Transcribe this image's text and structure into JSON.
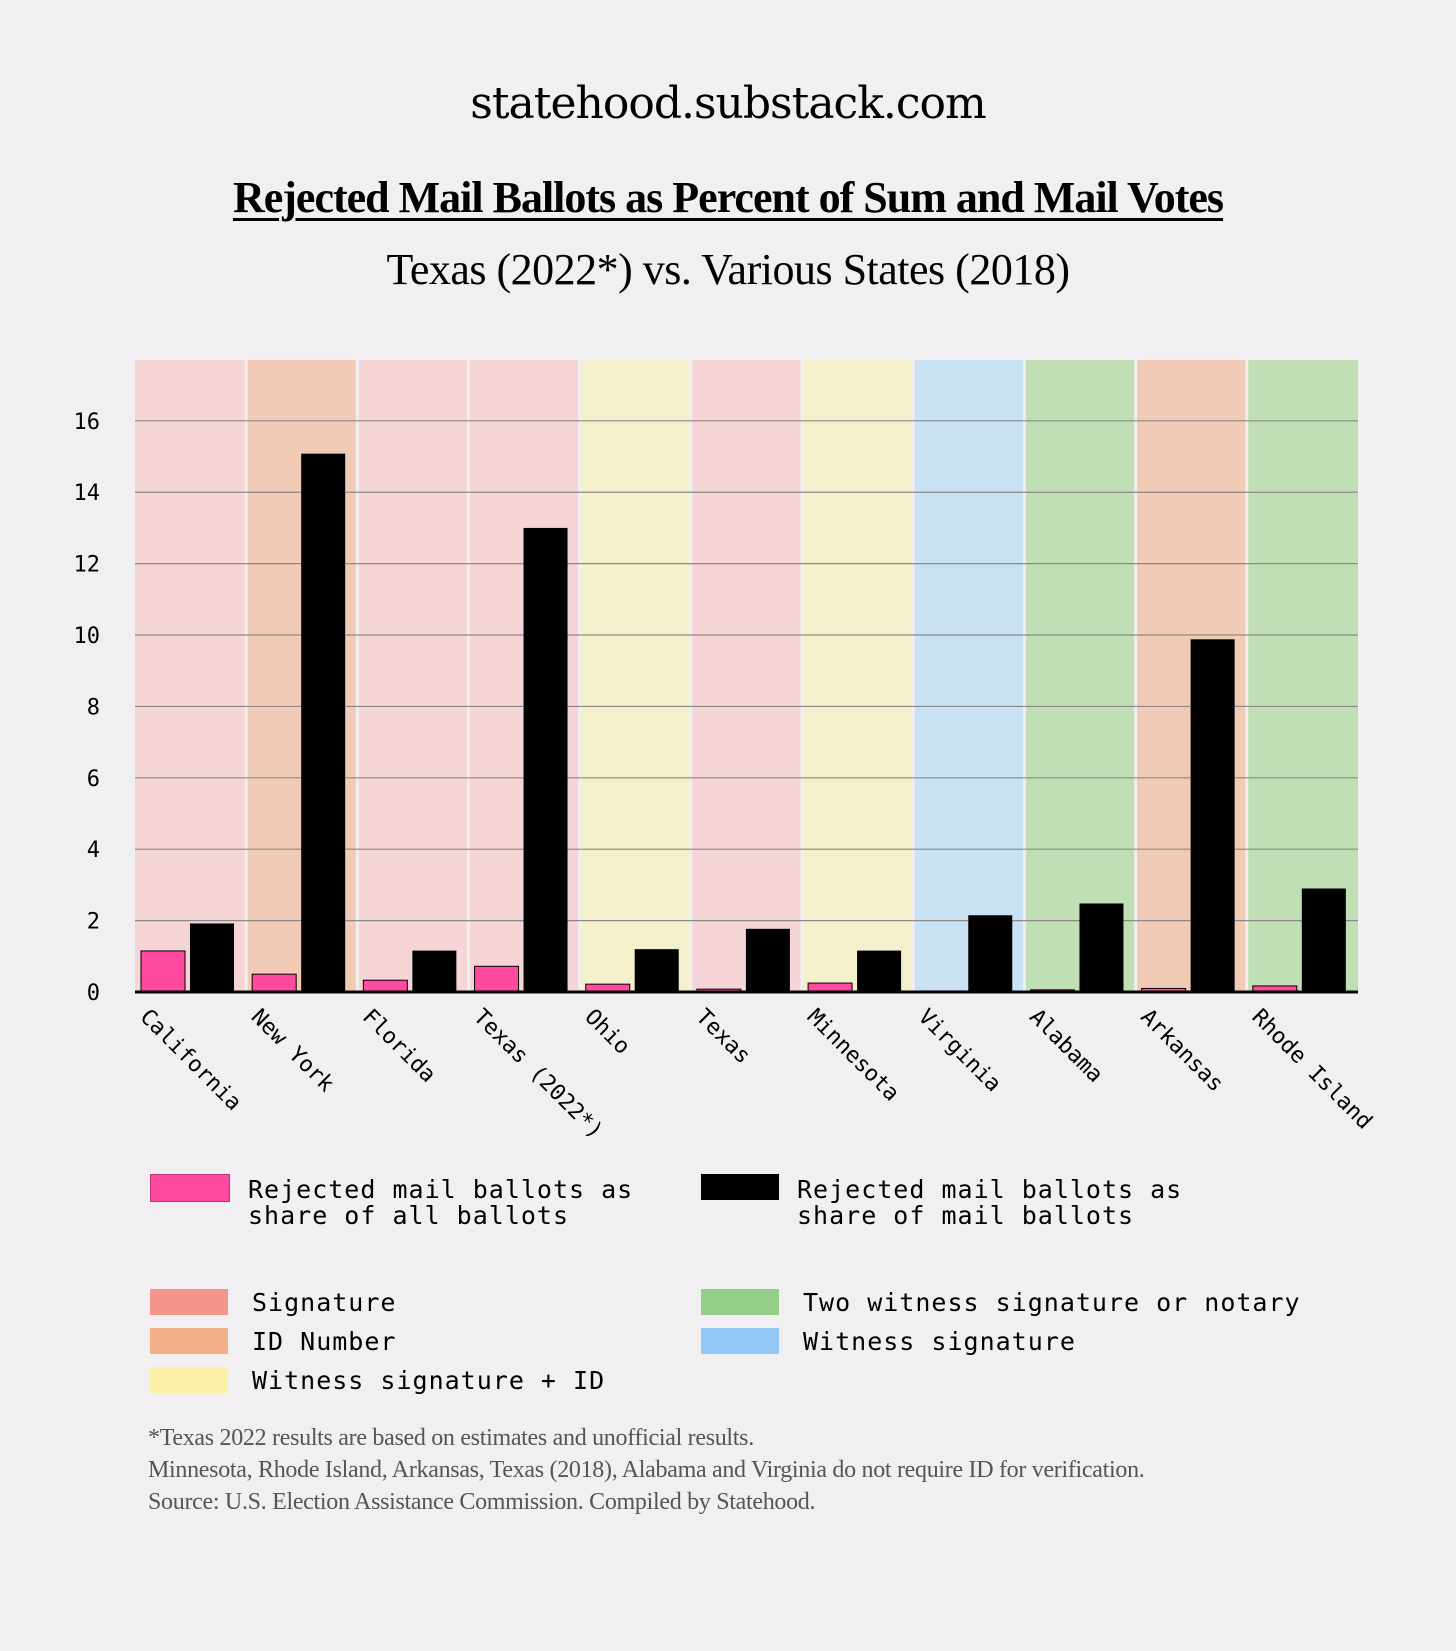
{
  "header": {
    "site": "statehood.substack.com",
    "title": "Rejected Mail Ballots as Percent of Sum and Mail Votes",
    "subtitle": "Texas (2022*)  vs. Various States (2018)"
  },
  "colors": {
    "bar_all": "#ff4aa0",
    "bar_mail": "#000000",
    "bg_signature": "#f5d5d5",
    "bg_id_number": "#f2cbb6",
    "bg_witness_id": "#f5f0cc",
    "bg_two_witness": "#c1dfb5",
    "bg_witness": "#c9e2f3",
    "legend_signature": "#f4958c",
    "legend_id_number": "#f1b088",
    "legend_witness_id": "#faf0a8",
    "legend_two_witness": "#94d08a",
    "legend_witness": "#93c8f6"
  },
  "chart_data": {
    "type": "bar",
    "categories": [
      "California",
      "New York",
      "Florida",
      "Texas (2022*)",
      "Ohio",
      "Texas",
      "Minnesota",
      "Virginia",
      "Alabama",
      "Arkansas",
      "Rhode Island"
    ],
    "series": [
      {
        "name": "Rejected mail ballots as share of all ballots",
        "color_key": "bar_all",
        "values": [
          1.15,
          0.5,
          0.33,
          0.72,
          0.22,
          0.08,
          0.25,
          0.03,
          0.06,
          0.1,
          0.17
        ]
      },
      {
        "name": "Rejected mail ballots as share of mail ballots",
        "color_key": "bar_mail",
        "values": [
          1.92,
          15.08,
          1.16,
          13.0,
          1.2,
          1.77,
          1.16,
          2.15,
          2.48,
          9.88,
          2.9
        ]
      }
    ],
    "verification": [
      "signature",
      "id_number",
      "signature",
      "signature",
      "witness_id",
      "signature",
      "witness_id",
      "witness",
      "two_witness",
      "id_number",
      "two_witness"
    ],
    "ylim": [
      0,
      17.2
    ],
    "yticks": [
      0,
      2,
      4,
      6,
      8,
      10,
      12,
      14,
      16
    ],
    "grid": true,
    "xlabel": "",
    "ylabel": ""
  },
  "legend": {
    "series": [
      {
        "label": "Rejected mail ballots as\nshare of all ballots",
        "color_key": "bar_all"
      },
      {
        "label": "Rejected mail ballots as\nshare of mail ballots",
        "color_key": "bar_mail"
      }
    ],
    "categories": [
      {
        "label": "Signature",
        "color_key": "legend_signature"
      },
      {
        "label": "ID Number",
        "color_key": "legend_id_number"
      },
      {
        "label": "Witness signature + ID",
        "color_key": "legend_witness_id"
      },
      {
        "label": "Two witness signature or notary",
        "color_key": "legend_two_witness"
      },
      {
        "label": "Witness signature",
        "color_key": "legend_witness"
      }
    ]
  },
  "notes": [
    "*Texas 2022 results are based on estimates and unofficial results.",
    "Minnesota, Rhode Island, Arkansas, Texas (2018), Alabama and Virginia do not require ID for verification.",
    "Source: U.S. Election Assistance Commission. Compiled by Statehood."
  ]
}
